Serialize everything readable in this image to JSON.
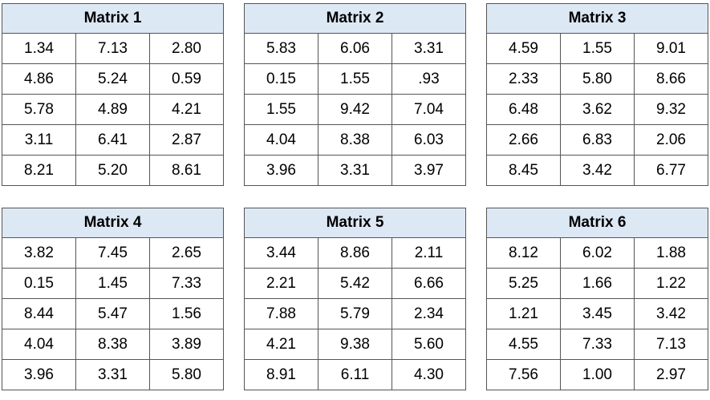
{
  "matrices": [
    {
      "title": "Matrix 1",
      "rows": [
        [
          "1.34",
          "7.13",
          "2.80"
        ],
        [
          "4.86",
          "5.24",
          "0.59"
        ],
        [
          "5.78",
          "4.89",
          "4.21"
        ],
        [
          "3.11",
          "6.41",
          "2.87"
        ],
        [
          "8.21",
          "5.20",
          "8.61"
        ]
      ]
    },
    {
      "title": "Matrix 2",
      "rows": [
        [
          "5.83",
          "6.06",
          "3.31"
        ],
        [
          "0.15",
          "1.55",
          ".93"
        ],
        [
          "1.55",
          "9.42",
          "7.04"
        ],
        [
          "4.04",
          "8.38",
          "6.03"
        ],
        [
          "3.96",
          "3.31",
          "3.97"
        ]
      ]
    },
    {
      "title": "Matrix 3",
      "rows": [
        [
          "4.59",
          "1.55",
          "9.01"
        ],
        [
          "2.33",
          "5.80",
          "8.66"
        ],
        [
          "6.48",
          "3.62",
          "9.32"
        ],
        [
          "2.66",
          "6.83",
          "2.06"
        ],
        [
          "8.45",
          "3.42",
          "6.77"
        ]
      ]
    },
    {
      "title": "Matrix 4",
      "rows": [
        [
          "3.82",
          "7.45",
          "2.65"
        ],
        [
          "0.15",
          "1.45",
          "7.33"
        ],
        [
          "8.44",
          "5.47",
          "1.56"
        ],
        [
          "4.04",
          "8.38",
          "3.89"
        ],
        [
          "3.96",
          "3.31",
          "5.80"
        ]
      ]
    },
    {
      "title": "Matrix 5",
      "rows": [
        [
          "3.44",
          "8.86",
          "2.11"
        ],
        [
          "2.21",
          "5.42",
          "6.66"
        ],
        [
          "7.88",
          "5.79",
          "2.34"
        ],
        [
          "4.21",
          "9.38",
          "5.60"
        ],
        [
          "8.91",
          "6.11",
          "4.30"
        ]
      ]
    },
    {
      "title": "Matrix 6",
      "rows": [
        [
          "8.12",
          "6.02",
          "1.88"
        ],
        [
          "5.25",
          "1.66",
          "1.22"
        ],
        [
          "1.21",
          "3.45",
          "3.42"
        ],
        [
          "4.55",
          "7.33",
          "7.13"
        ],
        [
          "7.56",
          "1.00",
          "2.97"
        ]
      ]
    }
  ],
  "colors": {
    "header_bg": "#dde8f5",
    "border": "#555555",
    "text": "#000000"
  }
}
